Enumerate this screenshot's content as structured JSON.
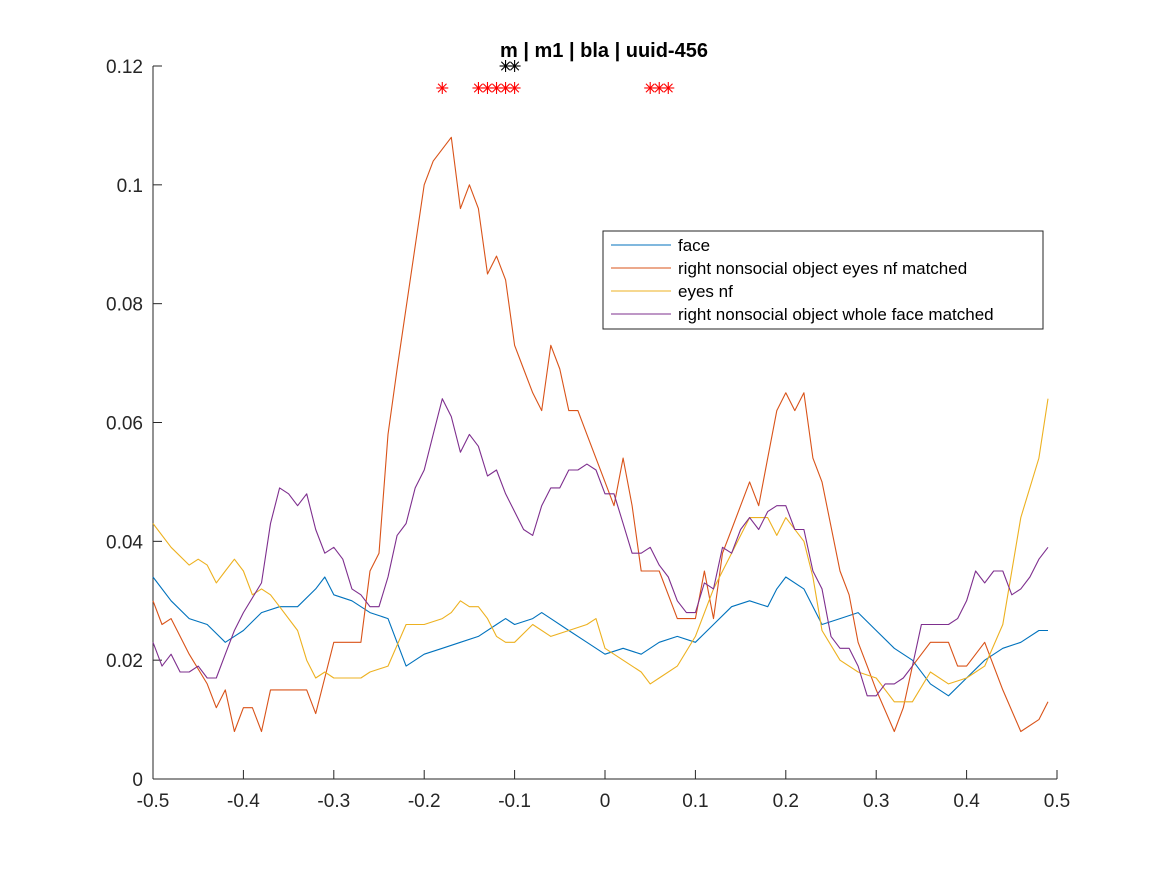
{
  "chart_data": {
    "type": "line",
    "title": "m | m1 | bla | uuid-456",
    "xlabel": "",
    "ylabel": "",
    "xlim": [
      -0.5,
      0.5
    ],
    "ylim": [
      0,
      0.12
    ],
    "xticks": [
      -0.5,
      -0.4,
      -0.3,
      -0.2,
      -0.1,
      0,
      0.1,
      0.2,
      0.3,
      0.4,
      0.5
    ],
    "xtick_labels": [
      "-0.5",
      "-0.4",
      "-0.3",
      "-0.2",
      "-0.1",
      "0",
      "0.1",
      "0.2",
      "0.3",
      "0.4",
      "0.5"
    ],
    "yticks": [
      0,
      0.02,
      0.04,
      0.06,
      0.08,
      0.1,
      0.12
    ],
    "ytick_labels": [
      "0",
      "0.02",
      "0.04",
      "0.06",
      "0.08",
      "0.1",
      "0.12"
    ],
    "grid": false,
    "legend_position": "upper-right inside",
    "series": [
      {
        "name": "face",
        "color": "#0072BD",
        "x": [
          -0.5,
          -0.48,
          -0.46,
          -0.44,
          -0.42,
          -0.4,
          -0.38,
          -0.36,
          -0.34,
          -0.32,
          -0.31,
          -0.3,
          -0.28,
          -0.26,
          -0.24,
          -0.22,
          -0.2,
          -0.18,
          -0.16,
          -0.14,
          -0.12,
          -0.11,
          -0.1,
          -0.08,
          -0.07,
          -0.06,
          -0.04,
          -0.02,
          0,
          0.02,
          0.04,
          0.06,
          0.08,
          0.1,
          0.12,
          0.14,
          0.16,
          0.18,
          0.19,
          0.2,
          0.22,
          0.24,
          0.26,
          0.28,
          0.3,
          0.32,
          0.34,
          0.36,
          0.38,
          0.4,
          0.42,
          0.44,
          0.46,
          0.48,
          0.49
        ],
        "y": [
          0.034,
          0.03,
          0.027,
          0.026,
          0.023,
          0.025,
          0.028,
          0.029,
          0.029,
          0.032,
          0.034,
          0.031,
          0.03,
          0.028,
          0.027,
          0.019,
          0.021,
          0.022,
          0.023,
          0.024,
          0.026,
          0.027,
          0.026,
          0.027,
          0.028,
          0.027,
          0.025,
          0.023,
          0.021,
          0.022,
          0.021,
          0.023,
          0.024,
          0.023,
          0.026,
          0.029,
          0.03,
          0.029,
          0.032,
          0.034,
          0.032,
          0.026,
          0.027,
          0.028,
          0.025,
          0.022,
          0.02,
          0.016,
          0.014,
          0.017,
          0.02,
          0.022,
          0.023,
          0.025,
          0.025
        ]
      },
      {
        "name": "right nonsocial object eyes nf matched",
        "color": "#D95319",
        "x": [
          -0.5,
          -0.49,
          -0.48,
          -0.46,
          -0.44,
          -0.43,
          -0.42,
          -0.41,
          -0.4,
          -0.39,
          -0.38,
          -0.37,
          -0.36,
          -0.34,
          -0.33,
          -0.32,
          -0.3,
          -0.28,
          -0.27,
          -0.26,
          -0.25,
          -0.24,
          -0.23,
          -0.2,
          -0.19,
          -0.17,
          -0.16,
          -0.15,
          -0.14,
          -0.13,
          -0.12,
          -0.11,
          -0.1,
          -0.09,
          -0.08,
          -0.07,
          -0.06,
          -0.05,
          -0.04,
          -0.03,
          -0.02,
          0,
          0.01,
          0.02,
          0.03,
          0.04,
          0.05,
          0.06,
          0.07,
          0.08,
          0.09,
          0.1,
          0.11,
          0.12,
          0.13,
          0.14,
          0.16,
          0.17,
          0.18,
          0.19,
          0.2,
          0.21,
          0.22,
          0.23,
          0.24,
          0.26,
          0.27,
          0.28,
          0.29,
          0.3,
          0.32,
          0.33,
          0.34,
          0.36,
          0.37,
          0.38,
          0.39,
          0.4,
          0.42,
          0.44,
          0.46,
          0.48,
          0.49
        ],
        "y": [
          0.03,
          0.026,
          0.027,
          0.021,
          0.016,
          0.012,
          0.015,
          0.008,
          0.012,
          0.012,
          0.008,
          0.015,
          0.015,
          0.015,
          0.015,
          0.011,
          0.023,
          0.023,
          0.023,
          0.035,
          0.038,
          0.058,
          0.069,
          0.1,
          0.104,
          0.108,
          0.096,
          0.1,
          0.096,
          0.085,
          0.088,
          0.084,
          0.073,
          0.069,
          0.065,
          0.062,
          0.073,
          0.069,
          0.062,
          0.062,
          0.058,
          0.05,
          0.046,
          0.054,
          0.046,
          0.035,
          0.035,
          0.035,
          0.031,
          0.027,
          0.027,
          0.027,
          0.035,
          0.027,
          0.038,
          0.042,
          0.05,
          0.046,
          0.054,
          0.062,
          0.065,
          0.062,
          0.065,
          0.054,
          0.05,
          0.035,
          0.031,
          0.023,
          0.019,
          0.015,
          0.008,
          0.012,
          0.019,
          0.023,
          0.023,
          0.023,
          0.019,
          0.019,
          0.023,
          0.015,
          0.008,
          0.01,
          0.013
        ]
      },
      {
        "name": "eyes nf",
        "color": "#EDB120",
        "x": [
          -0.5,
          -0.48,
          -0.46,
          -0.45,
          -0.44,
          -0.43,
          -0.42,
          -0.41,
          -0.4,
          -0.39,
          -0.38,
          -0.37,
          -0.36,
          -0.34,
          -0.33,
          -0.32,
          -0.31,
          -0.3,
          -0.29,
          -0.28,
          -0.27,
          -0.26,
          -0.24,
          -0.22,
          -0.2,
          -0.18,
          -0.17,
          -0.16,
          -0.15,
          -0.14,
          -0.13,
          -0.12,
          -0.11,
          -0.1,
          -0.08,
          -0.06,
          -0.04,
          -0.02,
          -0.01,
          0,
          0.02,
          0.04,
          0.05,
          0.06,
          0.08,
          0.1,
          0.12,
          0.14,
          0.16,
          0.18,
          0.19,
          0.2,
          0.22,
          0.23,
          0.24,
          0.26,
          0.28,
          0.3,
          0.32,
          0.34,
          0.36,
          0.38,
          0.4,
          0.42,
          0.44,
          0.46,
          0.48,
          0.49
        ],
        "y": [
          0.043,
          0.039,
          0.036,
          0.037,
          0.036,
          0.033,
          0.035,
          0.037,
          0.035,
          0.031,
          0.032,
          0.031,
          0.029,
          0.025,
          0.02,
          0.017,
          0.018,
          0.017,
          0.017,
          0.017,
          0.017,
          0.018,
          0.019,
          0.026,
          0.026,
          0.027,
          0.028,
          0.03,
          0.029,
          0.029,
          0.027,
          0.024,
          0.023,
          0.023,
          0.026,
          0.024,
          0.025,
          0.026,
          0.027,
          0.022,
          0.02,
          0.018,
          0.016,
          0.017,
          0.019,
          0.024,
          0.032,
          0.038,
          0.044,
          0.044,
          0.041,
          0.044,
          0.04,
          0.034,
          0.025,
          0.02,
          0.018,
          0.017,
          0.013,
          0.013,
          0.018,
          0.016,
          0.017,
          0.019,
          0.026,
          0.044,
          0.054,
          0.064
        ]
      },
      {
        "name": "right nonsocial object whole face matched",
        "color": "#7E2F8E",
        "x": [
          -0.5,
          -0.49,
          -0.48,
          -0.47,
          -0.46,
          -0.45,
          -0.44,
          -0.43,
          -0.42,
          -0.41,
          -0.4,
          -0.38,
          -0.37,
          -0.36,
          -0.35,
          -0.34,
          -0.33,
          -0.32,
          -0.31,
          -0.3,
          -0.29,
          -0.28,
          -0.27,
          -0.26,
          -0.25,
          -0.24,
          -0.23,
          -0.22,
          -0.21,
          -0.2,
          -0.19,
          -0.18,
          -0.17,
          -0.16,
          -0.15,
          -0.14,
          -0.13,
          -0.12,
          -0.11,
          -0.1,
          -0.09,
          -0.08,
          -0.07,
          -0.06,
          -0.05,
          -0.04,
          -0.03,
          -0.02,
          -0.01,
          0,
          0.01,
          0.02,
          0.03,
          0.04,
          0.05,
          0.06,
          0.07,
          0.08,
          0.09,
          0.1,
          0.11,
          0.12,
          0.13,
          0.14,
          0.15,
          0.16,
          0.17,
          0.18,
          0.19,
          0.2,
          0.21,
          0.22,
          0.23,
          0.24,
          0.25,
          0.26,
          0.27,
          0.28,
          0.29,
          0.3,
          0.31,
          0.32,
          0.33,
          0.34,
          0.35,
          0.36,
          0.37,
          0.38,
          0.39,
          0.4,
          0.41,
          0.42,
          0.43,
          0.44,
          0.45,
          0.46,
          0.47,
          0.48,
          0.49
        ],
        "y": [
          0.023,
          0.019,
          0.021,
          0.018,
          0.018,
          0.019,
          0.017,
          0.017,
          0.021,
          0.025,
          0.028,
          0.033,
          0.043,
          0.049,
          0.048,
          0.046,
          0.048,
          0.042,
          0.038,
          0.039,
          0.037,
          0.032,
          0.031,
          0.029,
          0.029,
          0.034,
          0.041,
          0.043,
          0.049,
          0.052,
          0.058,
          0.064,
          0.061,
          0.055,
          0.058,
          0.056,
          0.051,
          0.052,
          0.048,
          0.045,
          0.042,
          0.041,
          0.046,
          0.049,
          0.049,
          0.052,
          0.052,
          0.053,
          0.052,
          0.048,
          0.048,
          0.043,
          0.038,
          0.038,
          0.039,
          0.036,
          0.034,
          0.03,
          0.028,
          0.028,
          0.033,
          0.032,
          0.039,
          0.038,
          0.042,
          0.044,
          0.042,
          0.045,
          0.046,
          0.046,
          0.042,
          0.042,
          0.035,
          0.032,
          0.024,
          0.022,
          0.022,
          0.019,
          0.014,
          0.014,
          0.016,
          0.016,
          0.017,
          0.019,
          0.026,
          0.026,
          0.026,
          0.026,
          0.027,
          0.03,
          0.035,
          0.033,
          0.035,
          0.035,
          0.031,
          0.032,
          0.034,
          0.037,
          0.039
        ]
      }
    ],
    "significance_markers": [
      {
        "color": "#FF0000",
        "y": 0.1163,
        "x": [
          -0.18,
          -0.14,
          -0.13,
          -0.12,
          -0.11,
          -0.1,
          0.05,
          0.06,
          0.07
        ]
      },
      {
        "color": "#000000",
        "y": 0.12,
        "x": [
          -0.11,
          -0.1
        ]
      }
    ]
  }
}
